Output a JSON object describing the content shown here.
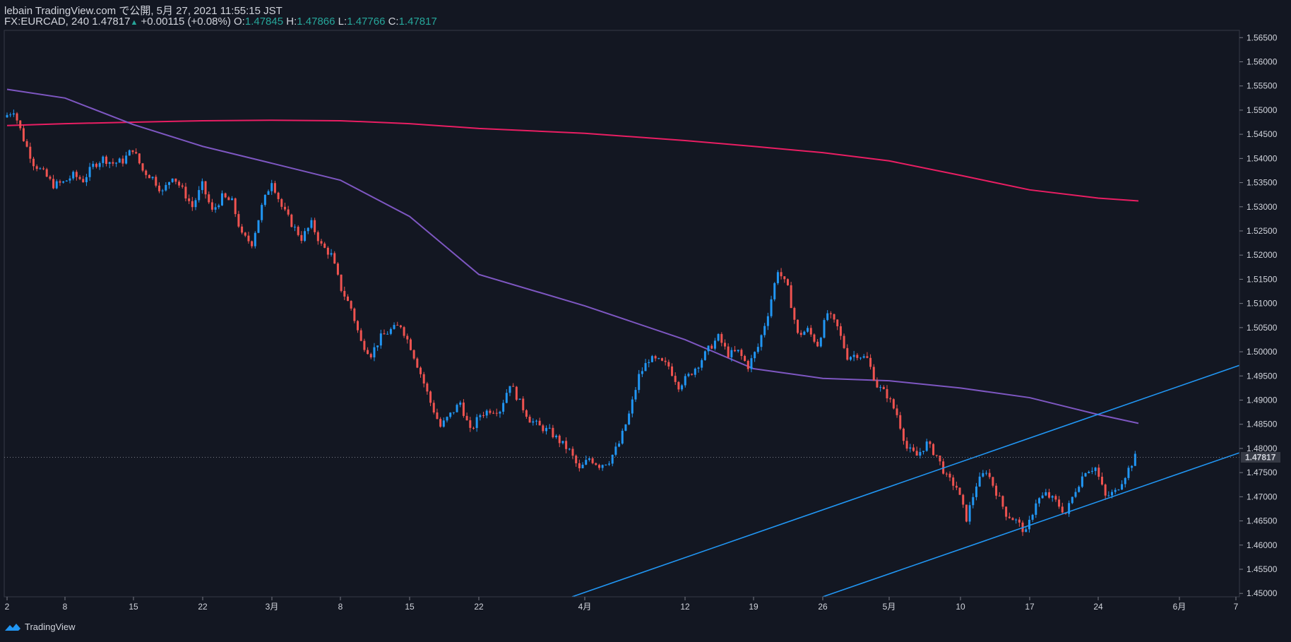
{
  "header": {
    "publisher": "lebain TradingView.com で公開, 5月 27, 2021 11:55:15 JST",
    "symbol": "FX:EURCAD, 240",
    "last": "1.47817",
    "change": "+0.00115 (+0.08%)",
    "o_label": "O:",
    "o_value": "1.47845",
    "h_label": "H:",
    "h_value": "1.47866",
    "l_label": "L:",
    "l_value": "1.47766",
    "c_label": "C:",
    "c_value": "1.47817"
  },
  "footer": {
    "brand": "TradingView",
    "logo_icon": "tradingview-logo-icon"
  },
  "colors": {
    "background": "#131722",
    "up": "#2196f3",
    "down": "#ef5350",
    "ma_long": "#e91e63",
    "ma_mid": "#7e57c2",
    "channel": "#2196f3",
    "grid_text": "#d1d4dc",
    "price_label_bg": "#363a45"
  },
  "chart_data": {
    "type": "candlestick",
    "symbol": "FX:EURCAD",
    "timeframe": "240",
    "ylim": [
      1.4493,
      1.5665
    ],
    "y_ticks": [
      "1.56500",
      "1.56000",
      "1.55500",
      "1.55000",
      "1.54500",
      "1.54000",
      "1.53500",
      "1.53000",
      "1.52500",
      "1.52000",
      "1.51500",
      "1.51000",
      "1.50500",
      "1.50000",
      "1.49500",
      "1.49000",
      "1.48500",
      "1.48000",
      "1.47500",
      "1.47000",
      "1.46500",
      "1.46000",
      "1.45500",
      "1.45000"
    ],
    "x_ticks": [
      "2",
      "8",
      "15",
      "22",
      "3月",
      "8",
      "15",
      "22",
      "4月",
      "12",
      "19",
      "26",
      "5月",
      "10",
      "17",
      "24",
      "6月",
      "7"
    ],
    "last_price": "1.47817",
    "close_path": [
      [
        "2",
        1.5485
      ],
      [
        "2.5",
        1.55
      ],
      [
        "3",
        1.544
      ],
      [
        "4",
        1.539
      ],
      [
        "5",
        1.537
      ],
      [
        "6",
        1.5345
      ],
      [
        "7",
        1.535
      ],
      [
        "8",
        1.5365
      ],
      [
        "9",
        1.5355
      ],
      [
        "10",
        1.5385
      ],
      [
        "11",
        1.54
      ],
      [
        "12",
        1.539
      ],
      [
        "14",
        1.5395
      ],
      [
        "15",
        1.542
      ],
      [
        "16",
        1.5375
      ],
      [
        "17",
        1.536
      ],
      [
        "18",
        1.533
      ],
      [
        "19",
        1.5365
      ],
      [
        "20",
        1.5335
      ],
      [
        "21",
        1.53
      ],
      [
        "22",
        1.5345
      ],
      [
        "23",
        1.529
      ],
      [
        "24",
        1.532
      ],
      [
        "25",
        1.531
      ],
      [
        "26",
        1.524
      ],
      [
        "27",
        1.5225
      ],
      [
        "28",
        1.53
      ],
      [
        "1",
        1.5355
      ],
      [
        "2",
        1.53
      ],
      [
        "3",
        1.5265
      ],
      [
        "4",
        1.5235
      ],
      [
        "5",
        1.5265
      ],
      [
        "6",
        1.522
      ],
      [
        "7",
        1.52
      ],
      [
        "8",
        1.513
      ],
      [
        "9",
        1.509
      ],
      [
        "10",
        1.502
      ],
      [
        "11",
        1.4995
      ],
      [
        "12",
        1.503
      ],
      [
        "13",
        1.5045
      ],
      [
        "14",
        1.5055
      ],
      [
        "15",
        1.501
      ],
      [
        "16",
        1.4955
      ],
      [
        "17",
        1.4895
      ],
      [
        "18",
        1.4845
      ],
      [
        "19",
        1.487
      ],
      [
        "20",
        1.4895
      ],
      [
        "21",
        1.4835
      ],
      [
        "22",
        1.487
      ],
      [
        "23",
        1.488
      ],
      [
        "24",
        1.488
      ],
      [
        "25",
        1.4935
      ],
      [
        "26",
        1.4895
      ],
      [
        "27",
        1.486
      ],
      [
        "28",
        1.4845
      ],
      [
        "29",
        1.4835
      ],
      [
        "30",
        1.4815
      ],
      [
        "31",
        1.4795
      ],
      [
        "1",
        1.4755
      ],
      [
        "2",
        1.478
      ],
      [
        "3",
        1.4765
      ],
      [
        "4",
        1.4775
      ],
      [
        "5",
        1.481
      ],
      [
        "6",
        1.487
      ],
      [
        "7",
        1.495
      ],
      [
        "8",
        1.4985
      ],
      [
        "9",
        1.498
      ],
      [
        "10",
        1.497
      ],
      [
        "11",
        1.493
      ],
      [
        "12",
        1.495
      ],
      [
        "13",
        1.4975
      ],
      [
        "14",
        1.5005
      ],
      [
        "15",
        1.503
      ],
      [
        "16",
        1.4995
      ],
      [
        "17",
        1.5
      ],
      [
        "18",
        1.497
      ],
      [
        "19",
        1.501
      ],
      [
        "20",
        1.508
      ],
      [
        "21",
        1.517
      ],
      [
        "22",
        1.513
      ],
      [
        "23",
        1.5035
      ],
      [
        "24",
        1.5045
      ],
      [
        "25",
        1.5015
      ],
      [
        "26",
        1.508
      ],
      [
        "27",
        1.505
      ],
      [
        "28",
        1.499
      ],
      [
        "29",
        1.4995
      ],
      [
        "30",
        1.4985
      ],
      [
        "1",
        1.493
      ],
      [
        "2",
        1.491
      ],
      [
        "3",
        1.487
      ],
      [
        "4",
        1.48
      ],
      [
        "5",
        1.4785
      ],
      [
        "6",
        1.481
      ],
      [
        "7",
        1.4785
      ],
      [
        "8",
        1.474
      ],
      [
        "9",
        1.472
      ],
      [
        "10",
        1.4655
      ],
      [
        "11",
        1.4725
      ],
      [
        "12",
        1.4755
      ],
      [
        "13",
        1.471
      ],
      [
        "14",
        1.4665
      ],
      [
        "15",
        1.465
      ],
      [
        "16",
        1.4625
      ],
      [
        "17",
        1.469
      ],
      [
        "18",
        1.4705
      ],
      [
        "19",
        1.469
      ],
      [
        "20",
        1.4665
      ],
      [
        "21",
        1.4715
      ],
      [
        "22",
        1.4755
      ],
      [
        "23",
        1.476
      ],
      [
        "24",
        1.47
      ],
      [
        "25",
        1.471
      ],
      [
        "26",
        1.4745
      ],
      [
        "27",
        1.4782
      ]
    ],
    "overlays": [
      {
        "name": "",
        "kind": "moving_average_long",
        "color": "#e91e63",
        "points": [
          [
            "2",
            1.5468
          ],
          [
            "8",
            1.5472
          ],
          [
            "15",
            1.5475
          ],
          [
            "22",
            1.5478
          ],
          [
            "3月",
            1.5479
          ],
          [
            "8",
            1.5478
          ],
          [
            "15",
            1.5472
          ],
          [
            "22",
            1.5462
          ],
          [
            "4月",
            1.5452
          ],
          [
            "12",
            1.5437
          ],
          [
            "19",
            1.5425
          ],
          [
            "26",
            1.5412
          ],
          [
            "5月",
            1.5395
          ],
          [
            "10",
            1.5365
          ],
          [
            "17",
            1.5335
          ],
          [
            "24",
            1.5318
          ],
          [
            "end",
            1.5312
          ]
        ]
      },
      {
        "name": "",
        "kind": "moving_average_mid",
        "color": "#7e57c2",
        "points": [
          [
            "2",
            1.5543
          ],
          [
            "8",
            1.5525
          ],
          [
            "15",
            1.547
          ],
          [
            "22",
            1.5425
          ],
          [
            "3月",
            1.539
          ],
          [
            "8",
            1.5355
          ],
          [
            "15",
            1.528
          ],
          [
            "22",
            1.516
          ],
          [
            "4月",
            1.5095
          ],
          [
            "12",
            1.5025
          ],
          [
            "19",
            1.4965
          ],
          [
            "26",
            1.4945
          ],
          [
            "5月",
            1.494
          ],
          [
            "10",
            1.4925
          ],
          [
            "17",
            1.4905
          ],
          [
            "24",
            1.487
          ],
          [
            "end",
            1.4852
          ]
        ]
      }
    ],
    "trendlines": [
      {
        "kind": "channel_upper",
        "color": "#2196f3",
        "from": [
          "4月",
          1.4493
        ],
        "to": [
          "7",
          1.4972
        ]
      },
      {
        "kind": "channel_lower",
        "color": "#2196f3",
        "from": [
          "26",
          1.4493
        ],
        "to": [
          "7",
          1.4791
        ]
      }
    ],
    "grid": false
  }
}
